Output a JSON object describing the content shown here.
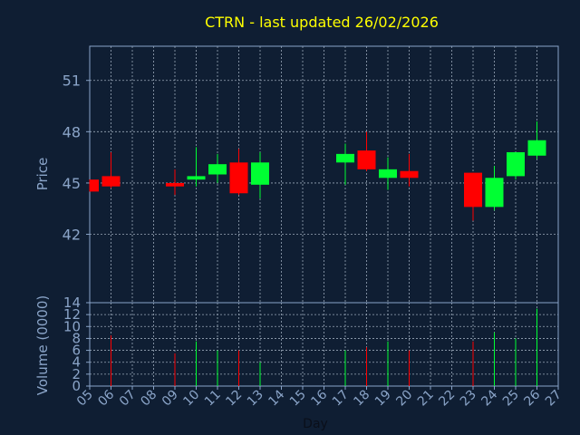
{
  "chart_data": {
    "type": "candlestick",
    "title": "CTRN - last updated 26/02/2026",
    "xlabel": "Day",
    "ylabel_price": "Price",
    "ylabel_volume": "Volume (0000)",
    "price_ylim": [
      38.0,
      53.0
    ],
    "price_yticks": [
      42,
      45,
      48,
      51
    ],
    "volume_ylim": [
      0,
      14
    ],
    "volume_yticks": [
      0,
      2,
      4,
      6,
      8,
      10,
      12,
      14
    ],
    "x_ticks": [
      "05",
      "06",
      "07",
      "08",
      "09",
      "10",
      "11",
      "12",
      "13",
      "14",
      "15",
      "16",
      "17",
      "18",
      "19",
      "20",
      "21",
      "22",
      "23",
      "24",
      "25",
      "26",
      "27"
    ],
    "grid": true,
    "colors": {
      "up": "#00ff33",
      "down": "#ff0000",
      "title": "#ffff00",
      "axis_text": "#8aa4c8",
      "grid": "#9aa8b8"
    },
    "candles": [
      {
        "day": "05",
        "open": 45.2,
        "close": 44.5,
        "high": 45.2,
        "low": 44.5,
        "volume": 0
      },
      {
        "day": "06",
        "open": 45.4,
        "close": 44.8,
        "high": 46.8,
        "low": 44.7,
        "volume": 8.5
      },
      {
        "day": "09",
        "open": 45.0,
        "close": 44.8,
        "high": 45.8,
        "low": 44.3,
        "volume": 5.5
      },
      {
        "day": "10",
        "open": 45.2,
        "close": 45.4,
        "high": 47.1,
        "low": 44.8,
        "volume": 7.5
      },
      {
        "day": "11",
        "open": 45.5,
        "close": 46.1,
        "high": 46.7,
        "low": 45.0,
        "volume": 6.0
      },
      {
        "day": "12",
        "open": 46.2,
        "close": 44.4,
        "high": 47.0,
        "low": 44.3,
        "volume": 6.0
      },
      {
        "day": "13",
        "open": 44.9,
        "close": 46.2,
        "high": 46.8,
        "low": 44.1,
        "volume": 4.0
      },
      {
        "day": "17",
        "open": 46.2,
        "close": 46.7,
        "high": 47.3,
        "low": 44.9,
        "volume": 6.0
      },
      {
        "day": "18",
        "open": 46.9,
        "close": 45.8,
        "high": 48.0,
        "low": 45.7,
        "volume": 6.5
      },
      {
        "day": "19",
        "open": 45.3,
        "close": 45.8,
        "high": 46.5,
        "low": 44.6,
        "volume": 7.5
      },
      {
        "day": "20",
        "open": 45.7,
        "close": 45.3,
        "high": 46.7,
        "low": 44.8,
        "volume": 6.0
      },
      {
        "day": "23",
        "open": 45.6,
        "close": 43.6,
        "high": 45.6,
        "low": 42.8,
        "volume": 7.5
      },
      {
        "day": "24",
        "open": 43.6,
        "close": 45.3,
        "high": 46.0,
        "low": 43.4,
        "volume": 9.0
      },
      {
        "day": "25",
        "open": 45.4,
        "close": 46.8,
        "high": 46.8,
        "low": 45.2,
        "volume": 8.0
      },
      {
        "day": "26",
        "open": 46.6,
        "close": 47.5,
        "high": 48.6,
        "low": 46.4,
        "volume": 13.0
      }
    ]
  }
}
